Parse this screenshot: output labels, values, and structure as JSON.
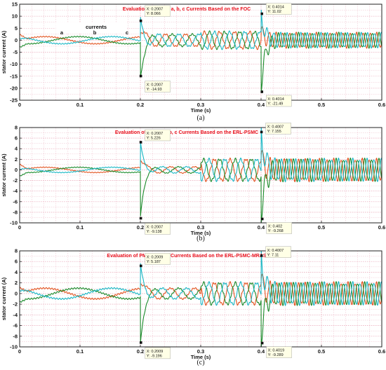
{
  "colors": {
    "phase_a": "#e2531f",
    "phase_b": "#1a8a2a",
    "phase_c": "#19b7c4",
    "title": "#e8101c",
    "grid": "#e7a1b3",
    "plot_bg": "#ffffff",
    "frame": "#222222"
  },
  "chart_data": [
    {
      "type": "line",
      "panel": "(a)",
      "title": "Evaluation of PMSM a, b, c Currents Based on the FOC",
      "xlabel": "Time (s)",
      "ylabel": "stator current (A)",
      "xlim": [
        0,
        0.6
      ],
      "ylim": [
        -25,
        15
      ],
      "xticks": [
        0,
        0.1,
        0.2,
        0.3,
        0.4,
        0.5,
        0.6
      ],
      "yticks": [
        -25,
        -20,
        -15,
        -10,
        -5,
        0,
        5,
        10,
        15
      ],
      "grid": true,
      "legend": {
        "title": "currents",
        "labels": [
          "a",
          "b",
          "c"
        ]
      },
      "segments": [
        {
          "t0": 0.0,
          "t1": 0.2,
          "amp": 1.5,
          "freq": 6
        },
        {
          "t0": 0.2,
          "t1": 0.3,
          "amp": 2.5,
          "freq": 30
        },
        {
          "t0": 0.3,
          "t1": 0.4,
          "amp": 3.5,
          "freq": 40
        },
        {
          "t0": 0.4,
          "t1": 0.6,
          "amp": 3.0,
          "freq": 90
        }
      ],
      "transients": [
        {
          "t": 0.2,
          "up": 8,
          "down": -14.9
        },
        {
          "t": 0.4,
          "up": 11,
          "down": -21.5
        }
      ],
      "annotations": [
        {
          "x_label": "X: 0.2007",
          "y_label": "Y: 8.066",
          "x": 0.2007,
          "y": 8.066
        },
        {
          "x_label": "X: 0.2007",
          "y_label": "Y: -14.93",
          "x": 0.2007,
          "y": -14.93
        },
        {
          "x_label": "X: 0.4014",
          "y_label": "Y: 11.02",
          "x": 0.4014,
          "y": 11.02
        },
        {
          "x_label": "X: 0.4014",
          "y_label": "Y: -21.49",
          "x": 0.4014,
          "y": -21.49
        }
      ]
    },
    {
      "type": "line",
      "panel": "(b)",
      "title": "Evaluation of PMSM a, b, c Currents Based on the ERL-PSMC",
      "xlabel": "Time (s)",
      "ylabel": "stator current (A)",
      "xlim": [
        0,
        0.6
      ],
      "ylim": [
        -10,
        8
      ],
      "xticks": [
        0,
        0.1,
        0.2,
        0.3,
        0.4,
        0.5,
        0.6
      ],
      "yticks": [
        -10,
        -8,
        -6,
        -4,
        -2,
        0,
        2,
        4,
        6,
        8
      ],
      "grid": true,
      "segments": [
        {
          "t0": 0.0,
          "t1": 0.2,
          "amp": 0.5,
          "freq": 6
        },
        {
          "t0": 0.2,
          "t1": 0.3,
          "amp": 0.6,
          "freq": 25
        },
        {
          "t0": 0.3,
          "t1": 0.4,
          "amp": 2.0,
          "freq": 38
        },
        {
          "t0": 0.4,
          "t1": 0.6,
          "amp": 2.0,
          "freq": 85
        }
      ],
      "transients": [
        {
          "t": 0.2,
          "up": 5.2,
          "down": -9.1
        },
        {
          "t": 0.4,
          "up": 7.2,
          "down": -9.3
        }
      ],
      "annotations": [
        {
          "x_label": "X: 0.2007",
          "y_label": "Y: 5.226",
          "x": 0.2007,
          "y": 5.226
        },
        {
          "x_label": "X: 0.2007",
          "y_label": "Y: -9.138",
          "x": 0.2007,
          "y": -9.138
        },
        {
          "x_label": "X: 0.4007",
          "y_label": "Y: 7.155",
          "x": 0.4007,
          "y": 7.155
        },
        {
          "x_label": "X: 0.402",
          "y_label": "Y: -9.268",
          "x": 0.402,
          "y": -9.268
        }
      ]
    },
    {
      "type": "line",
      "panel": "(c)",
      "title": "Evaluation of PMSM a, b, c Currents Based on the ERL-PSMC-MRAS",
      "xlabel": "Time (s)",
      "ylabel": "stator current (A)",
      "xlim": [
        0,
        0.6
      ],
      "ylim": [
        -10,
        8
      ],
      "xticks": [
        0,
        0.1,
        0.2,
        0.3,
        0.4,
        0.5,
        0.6
      ],
      "yticks": [
        -10,
        -8,
        -6,
        -4,
        -2,
        0,
        2,
        4,
        6,
        8
      ],
      "grid": true,
      "segments": [
        {
          "t0": 0.0,
          "t1": 0.2,
          "amp": 1.0,
          "freq": 6
        },
        {
          "t0": 0.2,
          "t1": 0.3,
          "amp": 1.0,
          "freq": 25
        },
        {
          "t0": 0.3,
          "t1": 0.4,
          "amp": 2.0,
          "freq": 38
        },
        {
          "t0": 0.4,
          "t1": 0.6,
          "amp": 2.0,
          "freq": 85
        }
      ],
      "transients": [
        {
          "t": 0.2,
          "up": 5.2,
          "down": -9.2
        },
        {
          "t": 0.4,
          "up": 7.1,
          "down": -9.3
        }
      ],
      "annotations": [
        {
          "x_label": "X: 0.2009",
          "y_label": "Y: 5.187",
          "x": 0.2009,
          "y": 5.187
        },
        {
          "x_label": "X: 0.2009",
          "y_label": "Y: -9.196",
          "x": 0.2009,
          "y": -9.196
        },
        {
          "x_label": "X: 0.4007",
          "y_label": "Y: 7.11",
          "x": 0.4007,
          "y": 7.11
        },
        {
          "x_label": "X: 0.4019",
          "y_label": "Y: -9.289",
          "x": 0.4019,
          "y": -9.289
        }
      ]
    }
  ]
}
